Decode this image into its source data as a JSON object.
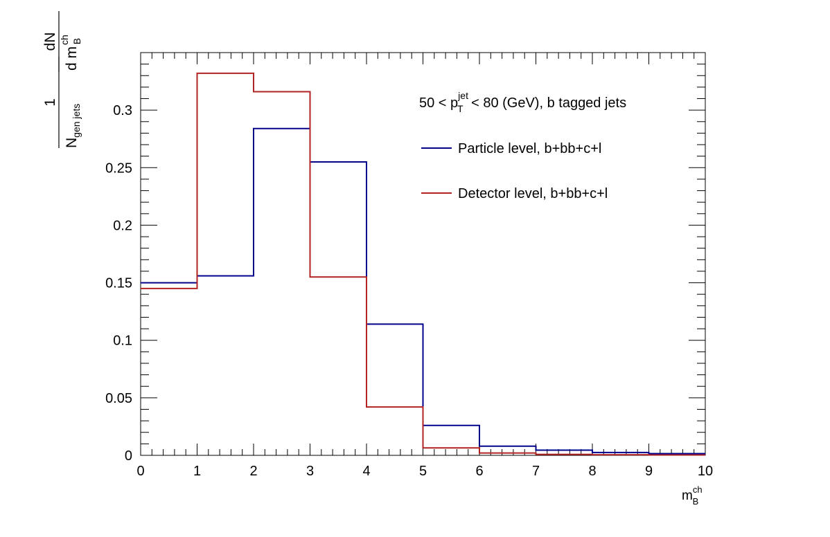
{
  "chart_data": {
    "type": "line",
    "x_bin_edges": [
      0,
      1,
      2,
      3,
      4,
      5,
      6,
      7,
      8,
      9,
      10
    ],
    "xlim": [
      0,
      10
    ],
    "ylim": [
      0,
      0.35
    ],
    "x_ticks": [
      0,
      1,
      2,
      3,
      4,
      5,
      6,
      7,
      8,
      9,
      10
    ],
    "y_ticks": [
      0,
      0.05,
      0.1,
      0.15,
      0.2,
      0.25,
      0.3
    ],
    "x_tick_labels": [
      "0",
      "1",
      "2",
      "3",
      "4",
      "5",
      "6",
      "7",
      "8",
      "9",
      "10"
    ],
    "y_tick_labels": [
      "0",
      "0.05",
      "0.1",
      "0.15",
      "0.2",
      "0.25",
      "0.3"
    ],
    "xlabel": {
      "main": "m",
      "sup": "ch",
      "sub": "B"
    },
    "ylabel": {
      "left_num": "1",
      "left_den_main": "N",
      "left_den_sub": "gen jets",
      "right_num": "dN",
      "right_den_main": "d m",
      "right_den_sup": "ch",
      "right_den_sub": "B"
    },
    "annotation": {
      "pre": "50 < p",
      "sup": "jet",
      "sub": "T",
      "post": " < 80 (GeV), b tagged jets"
    },
    "legend_position": "top-right",
    "series": [
      {
        "name": "Particle level, b+bb+c+l",
        "color": "#00008b",
        "values": [
          0.15,
          0.156,
          0.284,
          0.255,
          0.114,
          0.026,
          0.008,
          0.0045,
          0.0025,
          0.0015
        ]
      },
      {
        "name": "Detector level, b+bb+c+l",
        "color": "#b22222",
        "values": [
          0.145,
          0.332,
          0.316,
          0.155,
          0.042,
          0.0065,
          0.002,
          0.0008,
          0.0005,
          0.0003
        ]
      }
    ]
  }
}
